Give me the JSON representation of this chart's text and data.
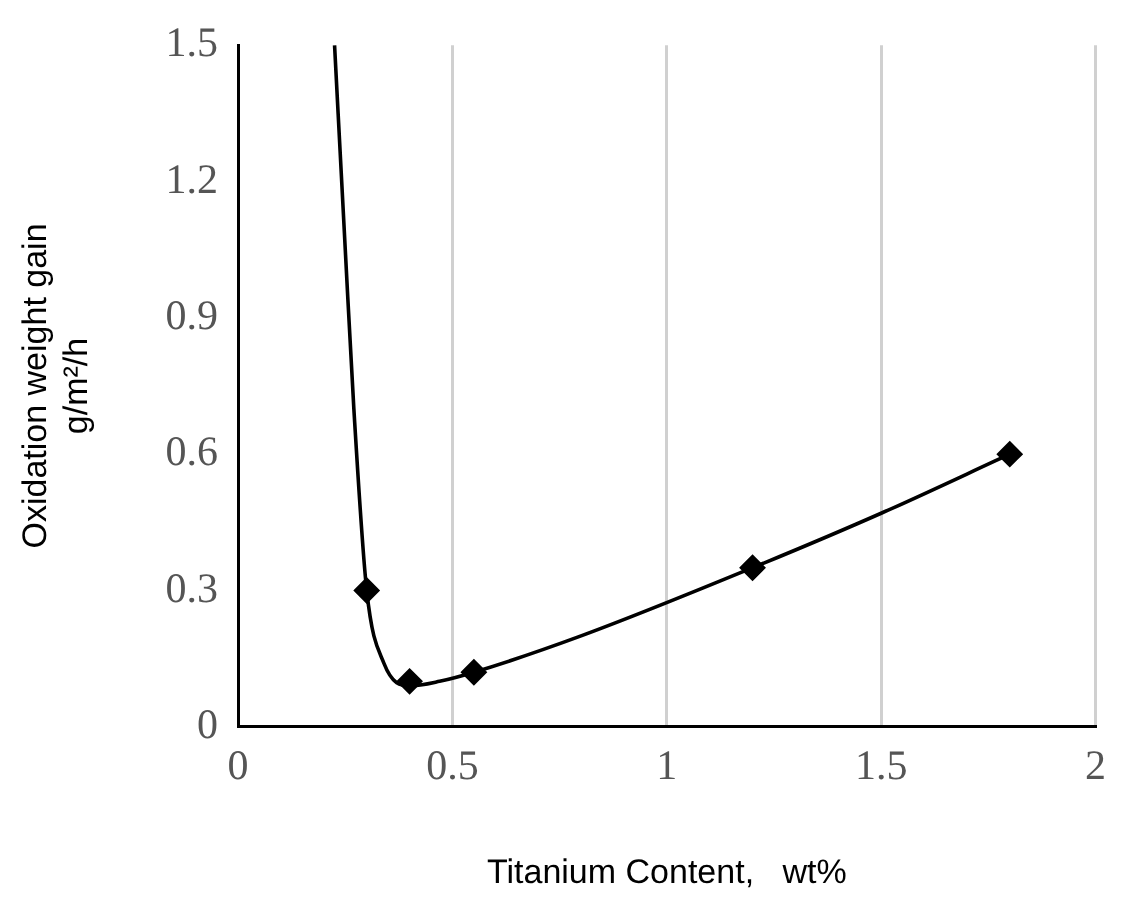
{
  "chart_data": {
    "type": "scatter",
    "xlabel": "Titanium Content,   wt%",
    "ylabel": "Oxidation weight gain\ng/m²/h",
    "series": [
      {
        "type": "scatter",
        "color": "#000000",
        "x": [
          0.3,
          0.4,
          0.55,
          1.2,
          1.8
        ],
        "values": [
          0.3,
          0.1,
          0.12,
          0.35,
          0.6
        ],
        "marker": "diamond"
      },
      {
        "type": "line",
        "color": "#000000",
        "x": [
          0.225,
          0.25,
          0.27,
          0.3,
          0.34,
          0.4,
          0.47,
          0.55,
          0.8,
          1.2,
          1.5,
          1.8
        ],
        "values": [
          1.5,
          1.05,
          0.7,
          0.3,
          0.14,
          0.09,
          0.1,
          0.12,
          0.2,
          0.35,
          0.47,
          0.6
        ],
        "marker": "none"
      }
    ],
    "xlim": [
      0,
      2
    ],
    "xticks": [
      0,
      0.5,
      1,
      1.5,
      2
    ],
    "ylim": [
      0,
      1.5
    ],
    "yticks": [
      0,
      0.3,
      0.6,
      0.9,
      1.2,
      1.5
    ],
    "grid": "x",
    "legend": false
  }
}
